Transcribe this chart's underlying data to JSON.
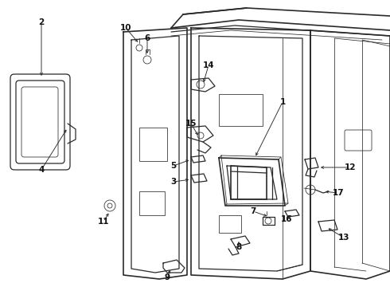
{
  "bg_color": "#ffffff",
  "line_color": "#2a2a2a",
  "fig_width": 4.9,
  "fig_height": 3.6,
  "dpi": 100,
  "lw": 0.9,
  "lw_thin": 0.55,
  "lw_thick": 1.2
}
